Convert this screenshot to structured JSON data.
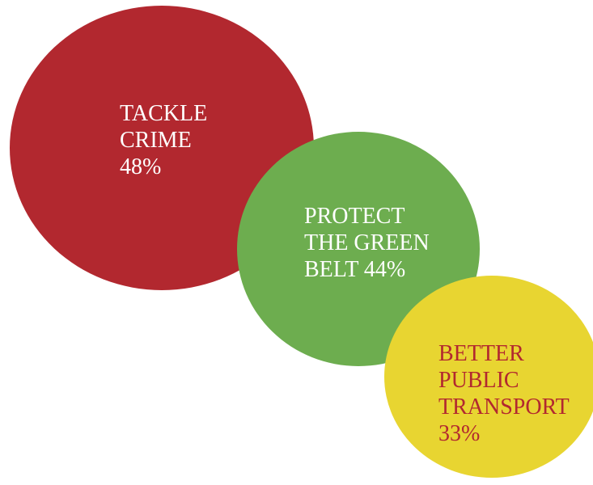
{
  "chart_data": {
    "type": "bubble",
    "bubbles": [
      {
        "category": "TACKLE CRIME",
        "label_lines": [
          "TACKLE",
          "CRIME",
          "48%"
        ],
        "value": 48,
        "fill": "#B2282F",
        "text_color": "#FFFFFF"
      },
      {
        "category": "PROTECT THE GREEN BELT",
        "label_lines": [
          "PROTECT",
          "THE GREEN",
          "BELT 44%"
        ],
        "value": 44,
        "fill": "#6DAD4F",
        "text_color": "#FFFFFF"
      },
      {
        "category": "BETTER PUBLIC TRANSPORT",
        "label_lines": [
          "BETTER",
          "PUBLIC",
          "TRANSPORT",
          "33%"
        ],
        "value": 33,
        "fill": "#E8D531",
        "text_color": "#B2282F"
      }
    ]
  }
}
